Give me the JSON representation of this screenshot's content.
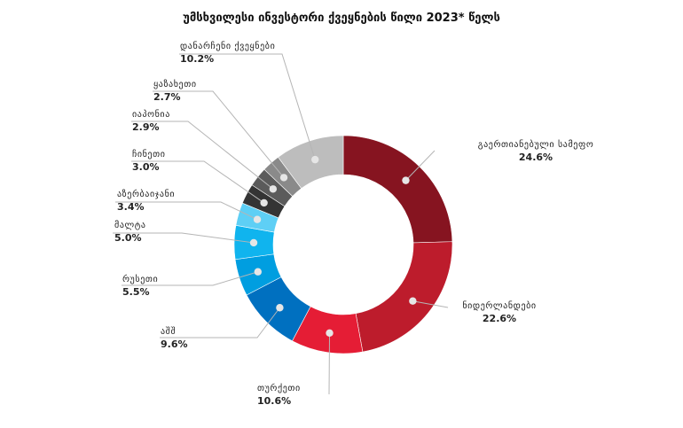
{
  "chart_data": {
    "type": "pie",
    "title": "უმსხვილესი ინვესტორი ქვეყნების წილი 2023* წელს",
    "unit": "%",
    "slices": [
      {
        "label": "გაერთიანებული სამეფო",
        "value": 24.6,
        "value_text": "24.6%",
        "color": "#861420"
      },
      {
        "label": "ნიდერლანდები",
        "value": 22.6,
        "value_text": "22.6%",
        "color": "#bd1c2c"
      },
      {
        "label": "თურქეთი",
        "value": 10.6,
        "value_text": "10.6%",
        "color": "#e51d35"
      },
      {
        "label": "აშშ",
        "value": 9.6,
        "value_text": "9.6%",
        "color": "#0070c0"
      },
      {
        "label": "რუსეთი",
        "value": 5.5,
        "value_text": "5.5%",
        "color": "#009ee0"
      },
      {
        "label": "მალტა",
        "value": 5.0,
        "value_text": "5.0%",
        "color": "#10b4ee"
      },
      {
        "label": "აზერბაიჯანი",
        "value": 3.4,
        "value_text": "3.4%",
        "color": "#5ecff5"
      },
      {
        "label": "ჩინეთი",
        "value": 3.0,
        "value_text": "3.0%",
        "color": "#343434"
      },
      {
        "label": "იაპონია",
        "value": 2.9,
        "value_text": "2.9%",
        "color": "#5b5b5b"
      },
      {
        "label": "ყაზახეთი",
        "value": 2.7,
        "value_text": "2.7%",
        "color": "#8a8a8a"
      },
      {
        "label": "დანარჩენი ქვეყნები",
        "value": 10.2,
        "value_text": "10.2%",
        "color": "#bdbdbd"
      }
    ]
  }
}
